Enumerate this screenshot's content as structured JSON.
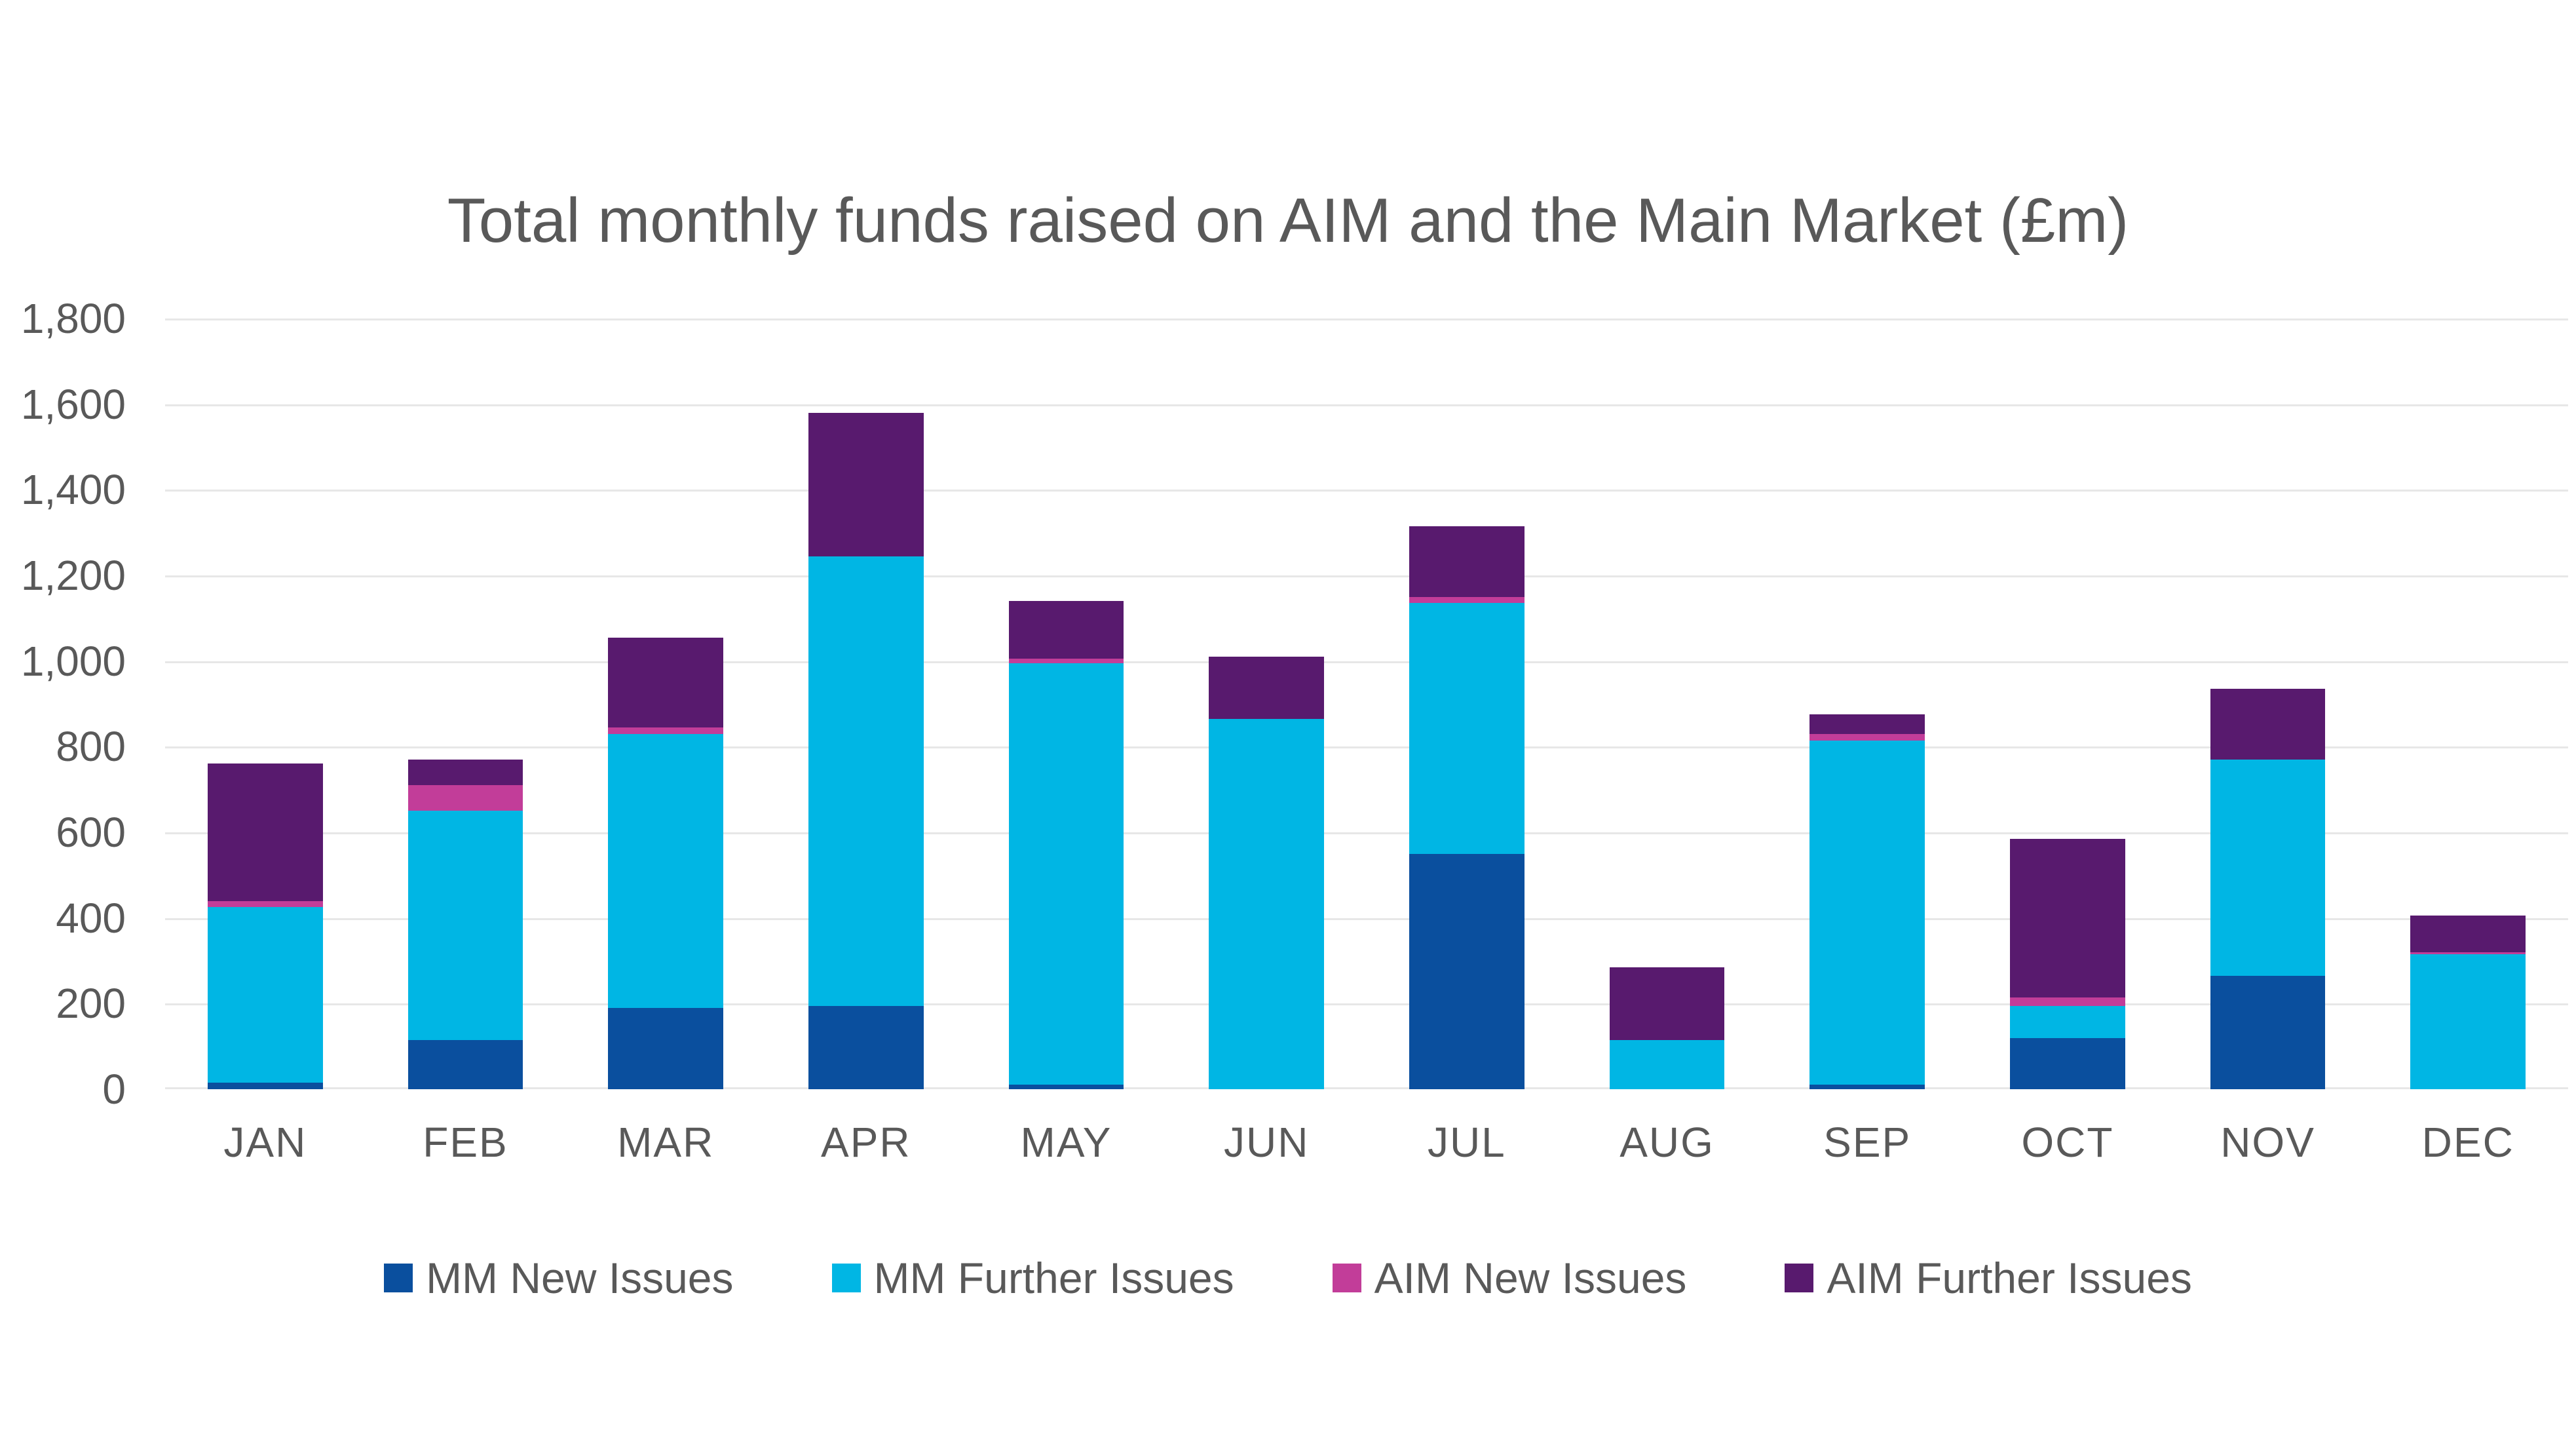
{
  "chart_data": {
    "type": "bar",
    "stacked": true,
    "title": "Total monthly funds raised on AIM and the Main Market (£m)",
    "categories": [
      "JAN",
      "FEB",
      "MAR",
      "APR",
      "MAY",
      "JUN",
      "JUL",
      "AUG",
      "SEP",
      "OCT",
      "NOV",
      "DEC"
    ],
    "series": [
      {
        "name": "MM New Issues",
        "color": "#0A4F9E",
        "values": [
          15,
          115,
          190,
          195,
          10,
          0,
          550,
          0,
          10,
          120,
          265,
          0
        ]
      },
      {
        "name": "MM Further Issues",
        "color": "#00B6E4",
        "values": [
          410,
          535,
          640,
          1050,
          985,
          865,
          585,
          115,
          805,
          75,
          505,
          315
        ]
      },
      {
        "name": "AIM New Issues",
        "color": "#C23D99",
        "values": [
          15,
          60,
          15,
          0,
          10,
          0,
          15,
          0,
          15,
          20,
          0,
          5
        ]
      },
      {
        "name": "AIM Further Issues",
        "color": "#581A6E",
        "values": [
          320,
          60,
          210,
          335,
          135,
          145,
          165,
          170,
          45,
          370,
          165,
          85
        ]
      }
    ],
    "monthly_totals": [
      760,
      770,
      1055,
      1580,
      1140,
      1010,
      1315,
      285,
      875,
      585,
      935,
      405
    ],
    "xlabel": "",
    "ylabel": "",
    "ylim": [
      0,
      1800
    ],
    "ytick_step": 200,
    "grid": true,
    "gridline_color": "#E7E7E7",
    "legend_position": "bottom",
    "text_color": "#595959",
    "background_color": "#FFFFFF"
  },
  "y_axis": {
    "tick_labels": [
      "1,800",
      "1,600",
      "1,400",
      "1,200",
      "1,000",
      "800",
      "600",
      "400",
      "200",
      "0"
    ]
  }
}
